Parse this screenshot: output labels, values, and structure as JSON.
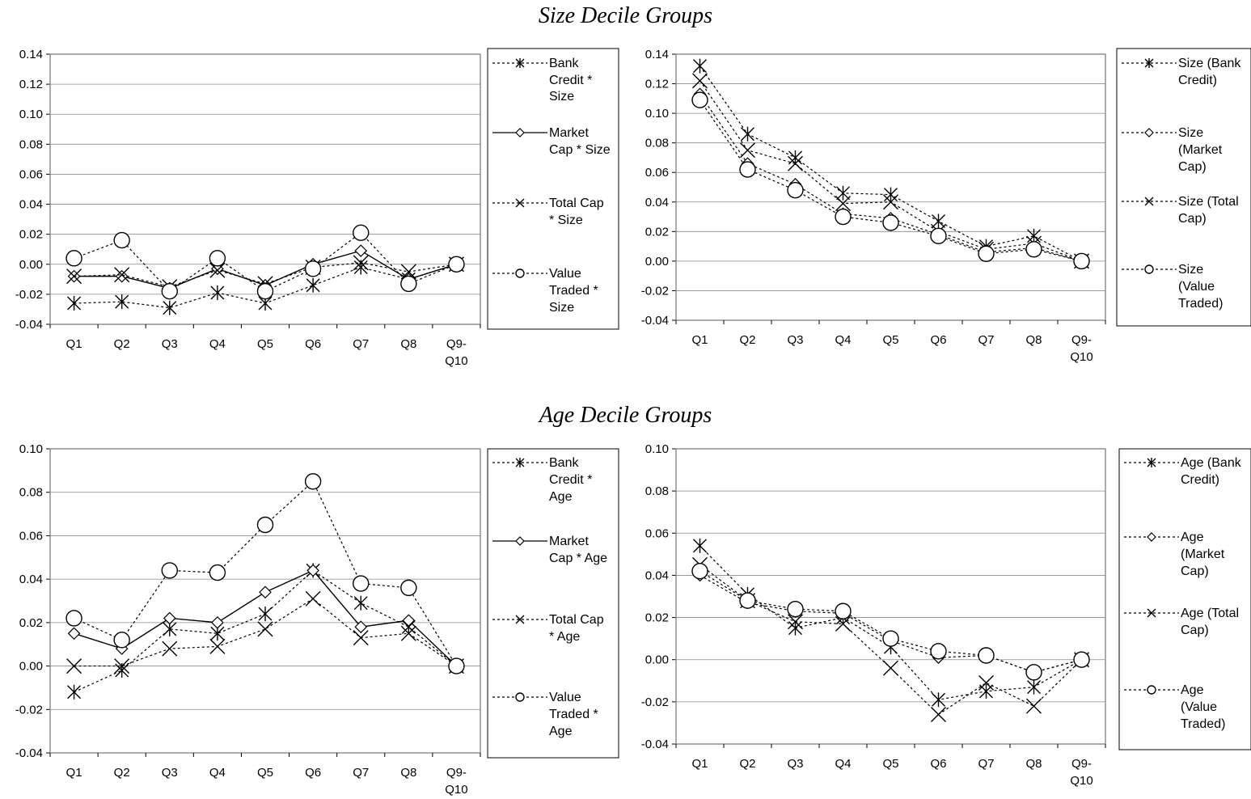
{
  "sections": {
    "size": {
      "title": "Size Decile Groups"
    },
    "age": {
      "title": "Age Decile Groups"
    }
  },
  "chart_data": [
    {
      "type": "line",
      "id": "size-left",
      "categories": [
        "Q1",
        "Q2",
        "Q3",
        "Q4",
        "Q5",
        "Q6",
        "Q7",
        "Q8",
        "Q9-Q10"
      ],
      "ylim": [
        -0.04,
        0.14
      ],
      "yticks": [
        "0.14",
        "0.12",
        "0.10",
        "0.08",
        "0.06",
        "0.04",
        "0.02",
        "0.00",
        "-0.02",
        "-0.04"
      ],
      "grid": true,
      "legend_position": "right",
      "series": [
        {
          "name": "Bank Credit * Size",
          "marker": "asterisk",
          "line": "dotted",
          "values": [
            -0.026,
            -0.025,
            -0.029,
            -0.019,
            -0.026,
            -0.014,
            -0.002,
            -0.01,
            0.0
          ]
        },
        {
          "name": "Market Cap * Size",
          "marker": "diamond",
          "line": "solid",
          "values": [
            -0.008,
            -0.008,
            -0.016,
            -0.003,
            -0.014,
            0.0,
            0.009,
            -0.01,
            0.0
          ]
        },
        {
          "name": "Total Cap * Size",
          "marker": "x",
          "line": "dotted",
          "values": [
            -0.008,
            -0.007,
            -0.015,
            -0.004,
            -0.013,
            -0.002,
            0.001,
            -0.005,
            0.0
          ]
        },
        {
          "name": "Value Traded * Size",
          "marker": "circle",
          "line": "dotted",
          "values": [
            0.004,
            0.016,
            -0.018,
            0.004,
            -0.018,
            -0.003,
            0.021,
            -0.013,
            0.0
          ]
        }
      ]
    },
    {
      "type": "line",
      "id": "size-right",
      "categories": [
        "Q1",
        "Q2",
        "Q3",
        "Q4",
        "Q5",
        "Q6",
        "Q7",
        "Q8",
        "Q9-Q10"
      ],
      "ylim": [
        -0.04,
        0.14
      ],
      "yticks": [
        "0.14",
        "0.12",
        "0.10",
        "0.08",
        "0.06",
        "0.04",
        "0.02",
        "0.00",
        "-0.02",
        "-0.04"
      ],
      "grid": true,
      "legend_position": "right",
      "series": [
        {
          "name": "Size (Bank Credit)",
          "marker": "asterisk",
          "line": "dotted",
          "values": [
            0.132,
            0.086,
            0.07,
            0.046,
            0.045,
            0.027,
            0.01,
            0.017,
            0.0
          ]
        },
        {
          "name": "Size (Market Cap)",
          "marker": "diamond",
          "line": "dotted",
          "values": [
            0.113,
            0.066,
            0.052,
            0.032,
            0.029,
            0.018,
            0.006,
            0.009,
            0.0
          ]
        },
        {
          "name": "Size (Total Cap)",
          "marker": "x",
          "line": "dotted",
          "values": [
            0.122,
            0.075,
            0.066,
            0.039,
            0.04,
            0.02,
            0.008,
            0.012,
            0.0
          ]
        },
        {
          "name": "Size (Value Traded)",
          "marker": "circle",
          "line": "dotted",
          "values": [
            0.109,
            0.062,
            0.048,
            0.03,
            0.026,
            0.017,
            0.005,
            0.008,
            0.0
          ]
        }
      ]
    },
    {
      "type": "line",
      "id": "age-left",
      "categories": [
        "Q1",
        "Q2",
        "Q3",
        "Q4",
        "Q5",
        "Q6",
        "Q7",
        "Q8",
        "Q9-Q10"
      ],
      "ylim": [
        -0.04,
        0.1
      ],
      "yticks": [
        "0.10",
        "0.08",
        "0.06",
        "0.04",
        "0.02",
        "0.00",
        "-0.02",
        "-0.04"
      ],
      "grid": true,
      "legend_position": "right",
      "series": [
        {
          "name": "Bank Credit * Age",
          "marker": "asterisk",
          "line": "dotted",
          "values": [
            -0.012,
            -0.002,
            0.017,
            0.015,
            0.024,
            0.044,
            0.029,
            0.018,
            0.0
          ]
        },
        {
          "name": "Market Cap * Age",
          "marker": "diamond",
          "line": "solid",
          "values": [
            0.015,
            0.008,
            0.022,
            0.02,
            0.034,
            0.044,
            0.018,
            0.021,
            0.0
          ]
        },
        {
          "name": "Total Cap * Age",
          "marker": "x",
          "line": "dotted",
          "values": [
            0.0,
            0.0,
            0.008,
            0.009,
            0.017,
            0.031,
            0.013,
            0.015,
            0.0
          ]
        },
        {
          "name": "Value Traded * Age",
          "marker": "circle",
          "line": "dotted",
          "values": [
            0.022,
            0.012,
            0.044,
            0.043,
            0.065,
            0.085,
            0.038,
            0.036,
            0.0
          ]
        }
      ]
    },
    {
      "type": "line",
      "id": "age-right",
      "categories": [
        "Q1",
        "Q2",
        "Q3",
        "Q4",
        "Q5",
        "Q6",
        "Q7",
        "Q8",
        "Q9-Q10"
      ],
      "ylim": [
        -0.04,
        0.1
      ],
      "yticks": [
        "0.10",
        "0.08",
        "0.06",
        "0.04",
        "0.02",
        "0.00",
        "-0.02",
        "-0.04"
      ],
      "grid": true,
      "legend_position": "right",
      "series": [
        {
          "name": "Age (Bank Credit)",
          "marker": "asterisk",
          "line": "dotted",
          "values": [
            0.054,
            0.031,
            0.015,
            0.02,
            0.006,
            -0.019,
            -0.015,
            -0.013,
            0.0
          ]
        },
        {
          "name": "Age (Market Cap)",
          "marker": "diamond",
          "line": "dotted",
          "values": [
            0.04,
            0.027,
            0.023,
            0.022,
            0.009,
            0.001,
            0.002,
            -0.006,
            0.0
          ]
        },
        {
          "name": "Age (Total Cap)",
          "marker": "x",
          "line": "dotted",
          "values": [
            0.045,
            0.028,
            0.018,
            0.017,
            -0.004,
            -0.026,
            -0.011,
            -0.022,
            0.0
          ]
        },
        {
          "name": "Age (Value Traded)",
          "marker": "circle",
          "line": "dotted",
          "values": [
            0.042,
            0.028,
            0.024,
            0.023,
            0.01,
            0.004,
            0.002,
            -0.006,
            0.0
          ]
        }
      ]
    }
  ]
}
